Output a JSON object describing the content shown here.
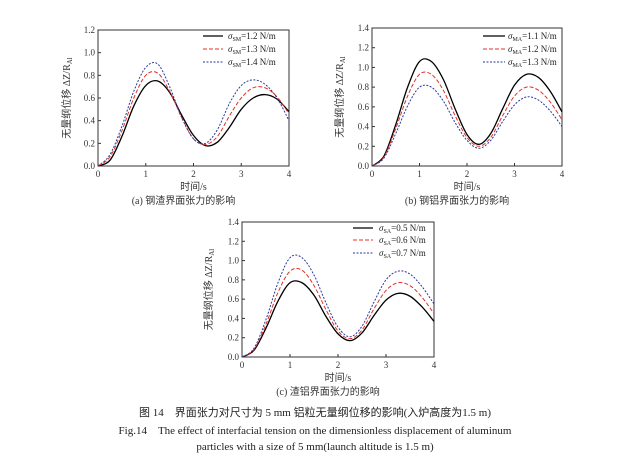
{
  "figure": {
    "caption_cn": "图 14　界面张力对尺寸为 5 mm 铝粒无量纲位移的影响(入炉高度为1.5 m)",
    "caption_en_1": "Fig.14　The effect of interfacial tension on the dimensionless displacement of aluminum",
    "caption_en_2": "particles with a size of 5 mm(launch altitude is 1.5 m)"
  },
  "chart_data": [
    {
      "type": "line",
      "subcaption": "(a) 钢渣界面张力的影响",
      "xlabel": "时间/s",
      "ylabel": "无量纲位移 ΔZ/R",
      "ylabel_sub": "Al",
      "xlim": [
        0,
        4
      ],
      "ylim": [
        0,
        1.2
      ],
      "xticks": [
        "0",
        "1",
        "2",
        "3",
        "4"
      ],
      "yticks": [
        "0.0",
        "0.2",
        "0.4",
        "0.6",
        "0.8",
        "1.0",
        "1.2"
      ],
      "legend_position": "top-right",
      "x": [
        0,
        0.25,
        0.5,
        0.75,
        1,
        1.25,
        1.5,
        1.75,
        2,
        2.25,
        2.5,
        2.75,
        3,
        3.25,
        3.5,
        3.75,
        4
      ],
      "series": [
        {
          "name": "σ",
          "sub": "SM",
          "value_text": "=1.2 N/m",
          "color": "#000000",
          "dash": "solid",
          "values": [
            0,
            0.05,
            0.26,
            0.53,
            0.71,
            0.75,
            0.65,
            0.45,
            0.27,
            0.18,
            0.21,
            0.34,
            0.5,
            0.6,
            0.63,
            0.59,
            0.48
          ]
        },
        {
          "name": "σ",
          "sub": "SM",
          "value_text": "=1.3 N/m",
          "color": "#e0302a",
          "dash": "dashed",
          "values": [
            0,
            0.08,
            0.31,
            0.6,
            0.8,
            0.82,
            0.66,
            0.43,
            0.24,
            0.19,
            0.26,
            0.44,
            0.6,
            0.69,
            0.69,
            0.61,
            0.46
          ]
        },
        {
          "name": "σ",
          "sub": "SM",
          "value_text": "=1.4 N/m",
          "color": "#2a3a9a",
          "dash": "dotted",
          "values": [
            0,
            0.1,
            0.35,
            0.66,
            0.87,
            0.9,
            0.7,
            0.43,
            0.24,
            0.2,
            0.32,
            0.55,
            0.71,
            0.76,
            0.72,
            0.6,
            0.4
          ]
        }
      ]
    },
    {
      "type": "line",
      "subcaption": "(b) 钢铝界面张力的影响",
      "xlabel": "时间/s",
      "ylabel": "无量纲位移 ΔZ/R",
      "ylabel_sub": "Al",
      "xlim": [
        0,
        4
      ],
      "ylim": [
        0,
        1.4
      ],
      "xticks": [
        "0",
        "1",
        "2",
        "3",
        "4"
      ],
      "yticks": [
        "0.0",
        "0.2",
        "0.4",
        "0.6",
        "0.8",
        "1.0",
        "1.2",
        "1.4"
      ],
      "legend_position": "top-right",
      "x": [
        0,
        0.25,
        0.5,
        0.75,
        1,
        1.25,
        1.5,
        1.75,
        2,
        2.25,
        2.5,
        2.75,
        3,
        3.25,
        3.5,
        3.75,
        4
      ],
      "series": [
        {
          "name": "σ",
          "sub": "MA",
          "value_text": "=1.1 N/m",
          "color": "#000000",
          "dash": "solid",
          "values": [
            0,
            0.1,
            0.42,
            0.8,
            1.06,
            1.06,
            0.88,
            0.58,
            0.32,
            0.22,
            0.33,
            0.58,
            0.82,
            0.93,
            0.9,
            0.76,
            0.55
          ]
        },
        {
          "name": "σ",
          "sub": "MA",
          "value_text": "=1.2 N/m",
          "color": "#e0302a",
          "dash": "dashed",
          "values": [
            0,
            0.09,
            0.38,
            0.71,
            0.93,
            0.93,
            0.77,
            0.51,
            0.29,
            0.2,
            0.29,
            0.51,
            0.71,
            0.8,
            0.77,
            0.65,
            0.47
          ]
        },
        {
          "name": "σ",
          "sub": "MA",
          "value_text": "=1.3 N/m",
          "color": "#2a3a9a",
          "dash": "dotted",
          "values": [
            0,
            0.08,
            0.33,
            0.61,
            0.8,
            0.8,
            0.66,
            0.44,
            0.26,
            0.18,
            0.26,
            0.45,
            0.62,
            0.7,
            0.67,
            0.56,
            0.4
          ]
        }
      ]
    },
    {
      "type": "line",
      "subcaption": "(c) 渣铝界面张力的影响",
      "xlabel": "时间/s",
      "ylabel": "无量纲位移 ΔZ/R",
      "ylabel_sub": "Al",
      "xlim": [
        0,
        4
      ],
      "ylim": [
        0,
        1.4
      ],
      "xticks": [
        "0",
        "1",
        "2",
        "3",
        "4"
      ],
      "yticks": [
        "0.0",
        "0.2",
        "0.4",
        "0.6",
        "0.8",
        "1.0",
        "1.2",
        "1.4"
      ],
      "legend_position": "top-right",
      "x": [
        0,
        0.25,
        0.5,
        0.75,
        1,
        1.25,
        1.5,
        1.75,
        2,
        2.25,
        2.5,
        2.75,
        3,
        3.25,
        3.5,
        3.75,
        4
      ],
      "series": [
        {
          "name": "σ",
          "sub": "SA",
          "value_text": "=0.5 N/m",
          "color": "#000000",
          "dash": "solid",
          "values": [
            0,
            0.07,
            0.3,
            0.58,
            0.77,
            0.77,
            0.64,
            0.42,
            0.24,
            0.17,
            0.25,
            0.43,
            0.59,
            0.66,
            0.63,
            0.52,
            0.37
          ]
        },
        {
          "name": "σ",
          "sub": "SA",
          "value_text": "=0.6 N/m",
          "color": "#e0302a",
          "dash": "dashed",
          "values": [
            0,
            0.08,
            0.34,
            0.67,
            0.89,
            0.9,
            0.74,
            0.49,
            0.27,
            0.19,
            0.28,
            0.5,
            0.69,
            0.77,
            0.74,
            0.62,
            0.45
          ]
        },
        {
          "name": "σ",
          "sub": "SA",
          "value_text": "=0.7 N/m",
          "color": "#2a3a9a",
          "dash": "dotted",
          "values": [
            0,
            0.09,
            0.39,
            0.77,
            1.03,
            1.03,
            0.85,
            0.56,
            0.31,
            0.21,
            0.32,
            0.57,
            0.8,
            0.89,
            0.86,
            0.73,
            0.55
          ]
        }
      ]
    }
  ]
}
